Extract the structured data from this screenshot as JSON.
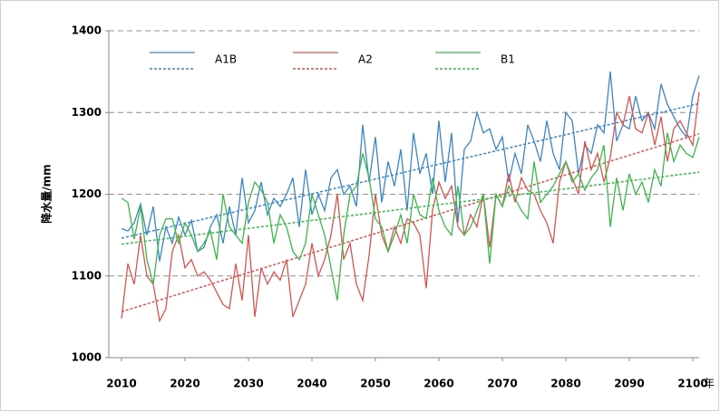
{
  "chart_data": {
    "type": "line",
    "y_label": "降水量/mm",
    "x_label": "年",
    "x": [
      2010,
      2011,
      2012,
      2013,
      2014,
      2015,
      2016,
      2017,
      2018,
      2019,
      2020,
      2021,
      2022,
      2023,
      2024,
      2025,
      2026,
      2027,
      2028,
      2029,
      2030,
      2031,
      2032,
      2033,
      2034,
      2035,
      2036,
      2037,
      2038,
      2039,
      2040,
      2041,
      2042,
      2043,
      2044,
      2045,
      2046,
      2047,
      2048,
      2049,
      2050,
      2051,
      2052,
      2053,
      2054,
      2055,
      2056,
      2057,
      2058,
      2059,
      2060,
      2061,
      2062,
      2063,
      2064,
      2065,
      2066,
      2067,
      2068,
      2069,
      2070,
      2071,
      2072,
      2073,
      2074,
      2075,
      2076,
      2077,
      2078,
      2079,
      2080,
      2081,
      2082,
      2083,
      2084,
      2085,
      2086,
      2087,
      2088,
      2089,
      2090,
      2091,
      2092,
      2093,
      2094,
      2095,
      2096,
      2097,
      2098,
      2099,
      2100,
      2101
    ],
    "series": [
      {
        "name": "A1B",
        "color": "#3a86c8",
        "values": [
          1158,
          1155,
          1165,
          1188,
          1150,
          1185,
          1118,
          1160,
          1140,
          1172,
          1150,
          1168,
          1130,
          1135,
          1160,
          1175,
          1140,
          1185,
          1150,
          1220,
          1165,
          1180,
          1215,
          1175,
          1195,
          1185,
          1200,
          1220,
          1160,
          1230,
          1175,
          1200,
          1180,
          1220,
          1230,
          1200,
          1210,
          1185,
          1285,
          1215,
          1270,
          1190,
          1240,
          1210,
          1255,
          1180,
          1275,
          1225,
          1250,
          1200,
          1290,
          1215,
          1275,
          1165,
          1255,
          1265,
          1300,
          1275,
          1280,
          1255,
          1270,
          1215,
          1250,
          1225,
          1285,
          1265,
          1240,
          1290,
          1250,
          1230,
          1300,
          1290,
          1225,
          1260,
          1250,
          1285,
          1275,
          1350,
          1265,
          1285,
          1280,
          1320,
          1290,
          1300,
          1280,
          1335,
          1310,
          1295,
          1280,
          1270,
          1320,
          1345
        ]
      },
      {
        "name": "A2",
        "color": "#d9534f",
        "values": [
          1048,
          1115,
          1090,
          1150,
          1100,
          1090,
          1045,
          1060,
          1130,
          1150,
          1110,
          1120,
          1100,
          1105,
          1095,
          1080,
          1065,
          1060,
          1115,
          1070,
          1150,
          1050,
          1110,
          1090,
          1105,
          1095,
          1120,
          1050,
          1070,
          1090,
          1140,
          1100,
          1120,
          1150,
          1200,
          1120,
          1140,
          1090,
          1070,
          1125,
          1200,
          1150,
          1130,
          1160,
          1140,
          1170,
          1165,
          1150,
          1085,
          1180,
          1215,
          1195,
          1210,
          1160,
          1150,
          1175,
          1160,
          1200,
          1135,
          1200,
          1185,
          1225,
          1190,
          1220,
          1205,
          1200,
          1180,
          1165,
          1140,
          1215,
          1240,
          1220,
          1200,
          1265,
          1230,
          1250,
          1215,
          1245,
          1300,
          1285,
          1320,
          1280,
          1275,
          1300,
          1260,
          1295,
          1240,
          1280,
          1290,
          1275,
          1260,
          1325
        ]
      },
      {
        "name": "B1",
        "color": "#3cb84a",
        "values": [
          1195,
          1190,
          1145,
          1185,
          1120,
          1090,
          1150,
          1170,
          1170,
          1140,
          1165,
          1150,
          1130,
          1140,
          1155,
          1120,
          1200,
          1160,
          1150,
          1140,
          1190,
          1215,
          1205,
          1190,
          1140,
          1175,
          1160,
          1130,
          1120,
          1140,
          1200,
          1175,
          1150,
          1110,
          1070,
          1150,
          1200,
          1210,
          1250,
          1220,
          1170,
          1160,
          1130,
          1150,
          1175,
          1140,
          1200,
          1175,
          1170,
          1220,
          1180,
          1160,
          1150,
          1210,
          1150,
          1160,
          1180,
          1200,
          1115,
          1200,
          1185,
          1210,
          1195,
          1180,
          1170,
          1240,
          1190,
          1200,
          1210,
          1225,
          1240,
          1215,
          1225,
          1205,
          1220,
          1230,
          1260,
          1160,
          1220,
          1180,
          1225,
          1200,
          1215,
          1190,
          1230,
          1210,
          1275,
          1240,
          1260,
          1250,
          1245,
          1270
        ]
      }
    ],
    "trendline": "linear",
    "xlim": [
      2008,
      2101
    ],
    "xticks": [
      2010,
      2020,
      2030,
      2040,
      2050,
      2060,
      2070,
      2080,
      2090,
      2100
    ],
    "ylim": [
      1000,
      1400
    ],
    "yticks": [
      1000,
      1100,
      1200,
      1300,
      1400
    ],
    "grid": true
  }
}
